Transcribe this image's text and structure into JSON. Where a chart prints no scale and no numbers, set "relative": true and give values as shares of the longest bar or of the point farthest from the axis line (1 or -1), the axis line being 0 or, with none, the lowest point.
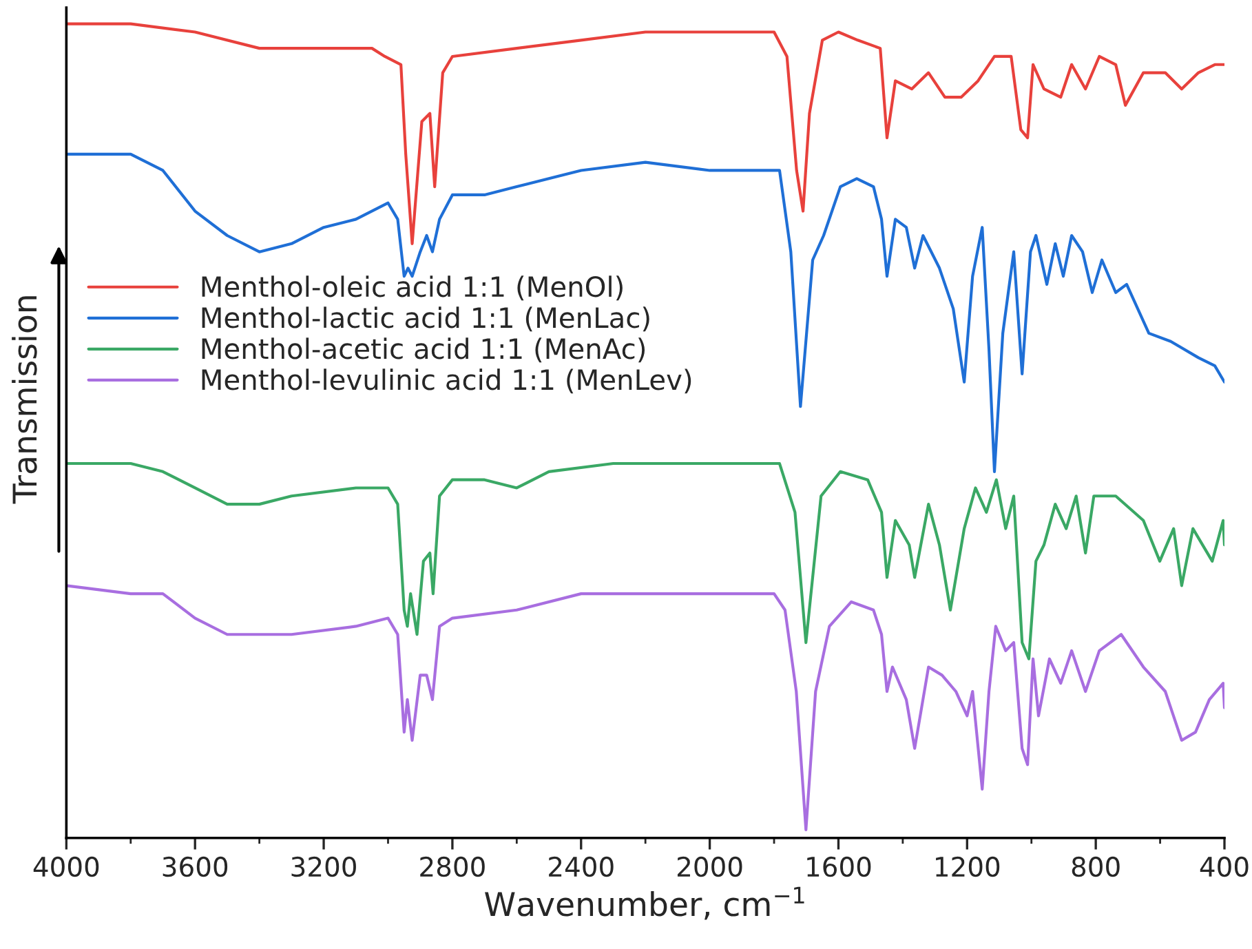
{
  "chart_data": {
    "type": "line",
    "relative": true,
    "xlabel": "Wavenumber, cm$^{−1}$",
    "ylabel": "Transmission",
    "xlim": [
      4000,
      400
    ],
    "xticks": [
      4000,
      3600,
      3200,
      2800,
      2400,
      2000,
      1600,
      1200,
      800,
      400
    ],
    "legend": "center left",
    "grid": false,
    "marker": "none",
    "line_style": "solid",
    "series": [
      {
        "name": "Menthol-oleic acid 1:1 (MenOl)",
        "color": "#e8413c",
        "x": [
          4000,
          3900,
          3800,
          3600,
          3400,
          3200,
          3050,
          3010,
          2960,
          2945,
          2925,
          2895,
          2870,
          2855,
          2830,
          2800,
          2600,
          2400,
          2200,
          2000,
          1800,
          1760,
          1730,
          1710,
          1690,
          1650,
          1600,
          1540,
          1470,
          1449,
          1423,
          1372,
          1320,
          1269,
          1218,
          1166,
          1115,
          1063,
          1033,
          1012,
          995,
          961,
          909,
          875,
          832,
          789,
          738,
          708,
          652,
          584,
          533,
          481,
          430,
          400
        ],
        "values": [
          1.0,
          1.0,
          1.0,
          0.99,
          0.97,
          0.97,
          0.97,
          0.96,
          0.95,
          0.84,
          0.73,
          0.88,
          0.89,
          0.8,
          0.94,
          0.96,
          0.97,
          0.98,
          0.99,
          0.99,
          0.99,
          0.96,
          0.82,
          0.77,
          0.89,
          0.98,
          0.99,
          0.98,
          0.97,
          0.86,
          0.93,
          0.92,
          0.94,
          0.91,
          0.91,
          0.93,
          0.96,
          0.96,
          0.87,
          0.86,
          0.95,
          0.92,
          0.91,
          0.95,
          0.92,
          0.96,
          0.95,
          0.9,
          0.94,
          0.94,
          0.92,
          0.94,
          0.95,
          0.95
        ]
      },
      {
        "name": "Menthol-lactic acid 1:1 (MenLac)",
        "color": "#1f6fd6",
        "x": [
          4000,
          3800,
          3700,
          3600,
          3500,
          3400,
          3300,
          3200,
          3100,
          3000,
          2970,
          2950,
          2938,
          2925,
          2900,
          2880,
          2862,
          2840,
          2800,
          2700,
          2600,
          2400,
          2200,
          2000,
          1800,
          1783,
          1748,
          1718,
          1680,
          1646,
          1594,
          1543,
          1491,
          1466,
          1449,
          1423,
          1389,
          1363,
          1337,
          1286,
          1243,
          1209,
          1183,
          1153,
          1132,
          1115,
          1089,
          1055,
          1029,
          1003,
          986,
          952,
          926,
          901,
          875,
          841,
          811,
          781,
          738,
          704,
          635,
          567,
          481,
          430,
          400
        ],
        "values": [
          0.84,
          0.84,
          0.82,
          0.77,
          0.74,
          0.72,
          0.73,
          0.75,
          0.76,
          0.78,
          0.76,
          0.69,
          0.7,
          0.69,
          0.72,
          0.74,
          0.72,
          0.76,
          0.79,
          0.79,
          0.8,
          0.82,
          0.83,
          0.82,
          0.82,
          0.82,
          0.72,
          0.53,
          0.71,
          0.74,
          0.8,
          0.81,
          0.8,
          0.76,
          0.69,
          0.76,
          0.75,
          0.7,
          0.74,
          0.7,
          0.65,
          0.56,
          0.69,
          0.75,
          0.6,
          0.45,
          0.62,
          0.72,
          0.57,
          0.72,
          0.74,
          0.68,
          0.73,
          0.69,
          0.74,
          0.72,
          0.67,
          0.71,
          0.67,
          0.68,
          0.62,
          0.61,
          0.59,
          0.58,
          0.56
        ]
      },
      {
        "name": "Menthol-acetic acid 1:1 (MenAc)",
        "color": "#3aa865",
        "x": [
          4000,
          3800,
          3700,
          3600,
          3500,
          3400,
          3300,
          3100,
          3000,
          2970,
          2950,
          2940,
          2930,
          2910,
          2890,
          2870,
          2860,
          2840,
          2800,
          2700,
          2600,
          2500,
          2300,
          2000,
          1783,
          1735,
          1701,
          1654,
          1594,
          1509,
          1466,
          1449,
          1423,
          1380,
          1363,
          1320,
          1286,
          1252,
          1209,
          1174,
          1140,
          1109,
          1080,
          1055,
          1029,
          1008,
          986,
          961,
          926,
          892,
          861,
          832,
          806,
          738,
          652,
          601,
          558,
          533,
          498,
          438,
          404,
          400
        ],
        "values": [
          0.46,
          0.46,
          0.45,
          0.43,
          0.41,
          0.41,
          0.42,
          0.43,
          0.43,
          0.41,
          0.28,
          0.26,
          0.3,
          0.25,
          0.34,
          0.35,
          0.3,
          0.42,
          0.44,
          0.44,
          0.43,
          0.45,
          0.46,
          0.46,
          0.46,
          0.4,
          0.24,
          0.42,
          0.45,
          0.44,
          0.4,
          0.32,
          0.39,
          0.36,
          0.32,
          0.41,
          0.36,
          0.28,
          0.38,
          0.43,
          0.4,
          0.44,
          0.38,
          0.42,
          0.24,
          0.22,
          0.34,
          0.36,
          0.41,
          0.38,
          0.42,
          0.35,
          0.42,
          0.42,
          0.39,
          0.34,
          0.38,
          0.31,
          0.38,
          0.34,
          0.39,
          0.36
        ]
      },
      {
        "name": "Menthol-levulinic acid 1:1 (MenLev)",
        "color": "#a86ee0",
        "x": [
          4000,
          3800,
          3700,
          3600,
          3500,
          3400,
          3300,
          3100,
          3000,
          2970,
          2950,
          2940,
          2925,
          2900,
          2880,
          2862,
          2840,
          2800,
          2600,
          2400,
          2200,
          2000,
          1800,
          1766,
          1731,
          1701,
          1671,
          1628,
          1560,
          1491,
          1466,
          1449,
          1432,
          1389,
          1363,
          1320,
          1278,
          1235,
          1200,
          1183,
          1153,
          1132,
          1111,
          1080,
          1055,
          1029,
          1012,
          995,
          978,
          944,
          909,
          875,
          832,
          789,
          721,
          652,
          584,
          533,
          490,
          447,
          404,
          400
        ],
        "values": [
          0.31,
          0.3,
          0.3,
          0.27,
          0.25,
          0.25,
          0.25,
          0.26,
          0.27,
          0.25,
          0.13,
          0.17,
          0.12,
          0.2,
          0.2,
          0.17,
          0.26,
          0.27,
          0.28,
          0.3,
          0.3,
          0.3,
          0.3,
          0.28,
          0.18,
          0.01,
          0.18,
          0.26,
          0.29,
          0.28,
          0.25,
          0.18,
          0.21,
          0.17,
          0.11,
          0.21,
          0.2,
          0.18,
          0.15,
          0.18,
          0.06,
          0.18,
          0.26,
          0.23,
          0.24,
          0.11,
          0.09,
          0.22,
          0.15,
          0.22,
          0.19,
          0.23,
          0.18,
          0.23,
          0.25,
          0.21,
          0.18,
          0.12,
          0.13,
          0.17,
          0.19,
          0.16
        ]
      }
    ]
  }
}
